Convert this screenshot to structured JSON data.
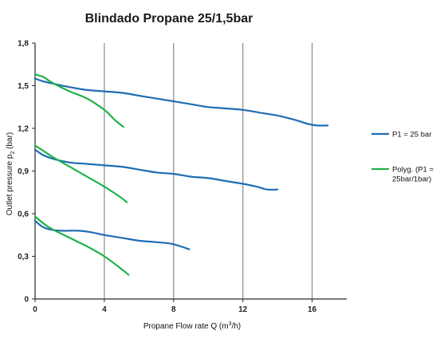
{
  "chart_data": {
    "type": "line",
    "title": "Blindado Propane 25/1,5bar",
    "xlabel_main": "Propane Flow rate Q (m",
    "xlabel_sup": "3",
    "xlabel_end": "/h)",
    "ylabel_main": "Outlet pressure p",
    "ylabel_sub": "2",
    "ylabel_end": "  (bar)",
    "xlim": [
      0,
      18
    ],
    "ylim": [
      0,
      1.8
    ],
    "x_ticks": [
      0,
      4,
      8,
      12,
      16
    ],
    "x_tick_labels": [
      "0",
      "4",
      "8",
      "12",
      "16"
    ],
    "y_ticks": [
      0,
      0.3,
      0.6,
      0.9,
      1.2,
      1.5,
      1.8
    ],
    "y_tick_labels": [
      "0",
      "0,3",
      "0,6",
      "0,9",
      "1,2",
      "1,5",
      "1,8"
    ],
    "grid": "vertical",
    "legend_placement": "right",
    "colors": {
      "p1": "#1f6db3",
      "polyg": "#21b24a",
      "grid": "#8a8a8a",
      "axis": "#2a2a2a"
    },
    "legend": [
      {
        "key": "p1",
        "lines": [
          "P1 = 25 bar"
        ]
      },
      {
        "key": "polyg",
        "lines": [
          "Polyg. (P1 =",
          "25bar/1bar)"
        ]
      }
    ],
    "series": [
      {
        "name": "P1 = 25 bar",
        "key": "p1",
        "curves": [
          [
            [
              0,
              1.55
            ],
            [
              0.5,
              1.53
            ],
            [
              1.2,
              1.51
            ],
            [
              2,
              1.49
            ],
            [
              3,
              1.47
            ],
            [
              4,
              1.46
            ],
            [
              5,
              1.45
            ],
            [
              6,
              1.43
            ],
            [
              7,
              1.41
            ],
            [
              8,
              1.39
            ],
            [
              9,
              1.37
            ],
            [
              10,
              1.35
            ],
            [
              11,
              1.34
            ],
            [
              12,
              1.33
            ],
            [
              13,
              1.31
            ],
            [
              14,
              1.29
            ],
            [
              15,
              1.26
            ],
            [
              15.8,
              1.23
            ],
            [
              16.3,
              1.22
            ],
            [
              16.9,
              1.22
            ]
          ],
          [
            [
              0,
              1.05
            ],
            [
              0.5,
              1.01
            ],
            [
              1.2,
              0.98
            ],
            [
              2,
              0.96
            ],
            [
              3,
              0.95
            ],
            [
              4,
              0.94
            ],
            [
              5,
              0.93
            ],
            [
              6,
              0.91
            ],
            [
              7,
              0.89
            ],
            [
              8,
              0.88
            ],
            [
              9,
              0.86
            ],
            [
              10,
              0.85
            ],
            [
              11,
              0.83
            ],
            [
              12,
              0.81
            ],
            [
              12.8,
              0.79
            ],
            [
              13.4,
              0.77
            ],
            [
              14,
              0.77
            ]
          ],
          [
            [
              0,
              0.55
            ],
            [
              0.4,
              0.51
            ],
            [
              0.8,
              0.49
            ],
            [
              1.5,
              0.48
            ],
            [
              2.5,
              0.48
            ],
            [
              3.2,
              0.47
            ],
            [
              4,
              0.45
            ],
            [
              5,
              0.43
            ],
            [
              6,
              0.41
            ],
            [
              7,
              0.4
            ],
            [
              7.8,
              0.39
            ],
            [
              8.4,
              0.37
            ],
            [
              8.9,
              0.35
            ]
          ]
        ]
      },
      {
        "name": "Polyg. (P1 = 25bar/1bar)",
        "key": "polyg",
        "curves": [
          [
            [
              0,
              1.58
            ],
            [
              0.5,
              1.56
            ],
            [
              1,
              1.52
            ],
            [
              2,
              1.46
            ],
            [
              3,
              1.41
            ],
            [
              4,
              1.33
            ],
            [
              4.6,
              1.26
            ],
            [
              5.1,
              1.21
            ]
          ],
          [
            [
              0,
              1.08
            ],
            [
              0.5,
              1.04
            ],
            [
              1,
              1.0
            ],
            [
              2,
              0.93
            ],
            [
              3,
              0.86
            ],
            [
              4,
              0.79
            ],
            [
              5,
              0.71
            ],
            [
              5.3,
              0.68
            ]
          ],
          [
            [
              0,
              0.58
            ],
            [
              0.5,
              0.53
            ],
            [
              1,
              0.49
            ],
            [
              2,
              0.43
            ],
            [
              3,
              0.37
            ],
            [
              4,
              0.3
            ],
            [
              5,
              0.21
            ],
            [
              5.4,
              0.17
            ]
          ]
        ]
      }
    ]
  }
}
